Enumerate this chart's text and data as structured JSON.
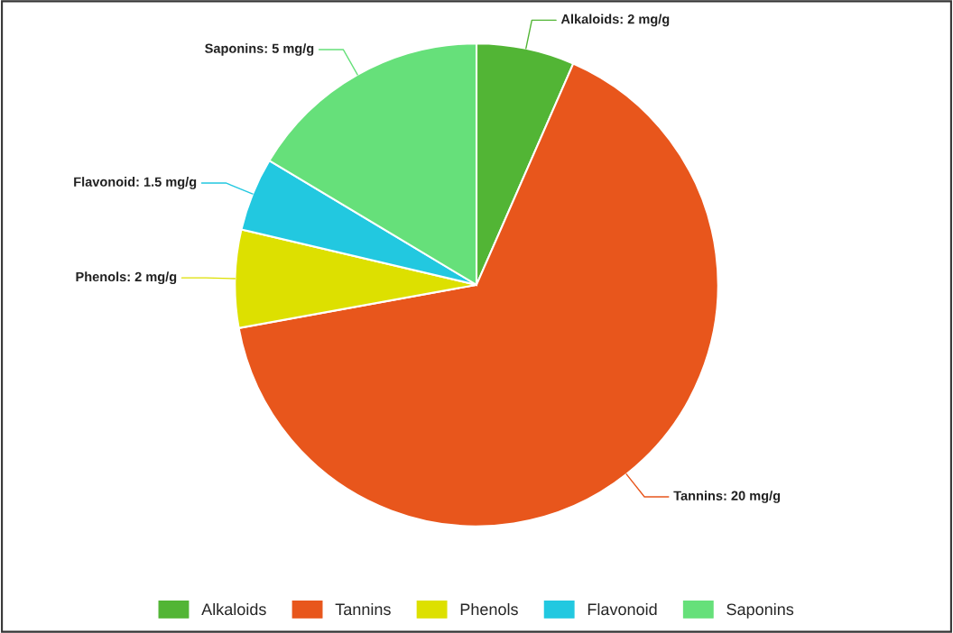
{
  "chart_data": {
    "type": "pie",
    "categories": [
      "Alkaloids",
      "Tannins",
      "Phenols",
      "Flavonoid",
      "Saponins"
    ],
    "values": [
      2,
      20,
      2,
      1.5,
      5
    ],
    "colors": [
      "#52b535",
      "#e8561c",
      "#dde000",
      "#22c8e0",
      "#66e07a"
    ],
    "value_labels": [
      "Alkaloids: 2 mg/g",
      "Tannins: 20 mg/g",
      "Phenols: 2 mg/g",
      "Flavonoid: 1.5 mg/g",
      "Saponins: 5 mg/g"
    ],
    "legend": "bottom"
  }
}
